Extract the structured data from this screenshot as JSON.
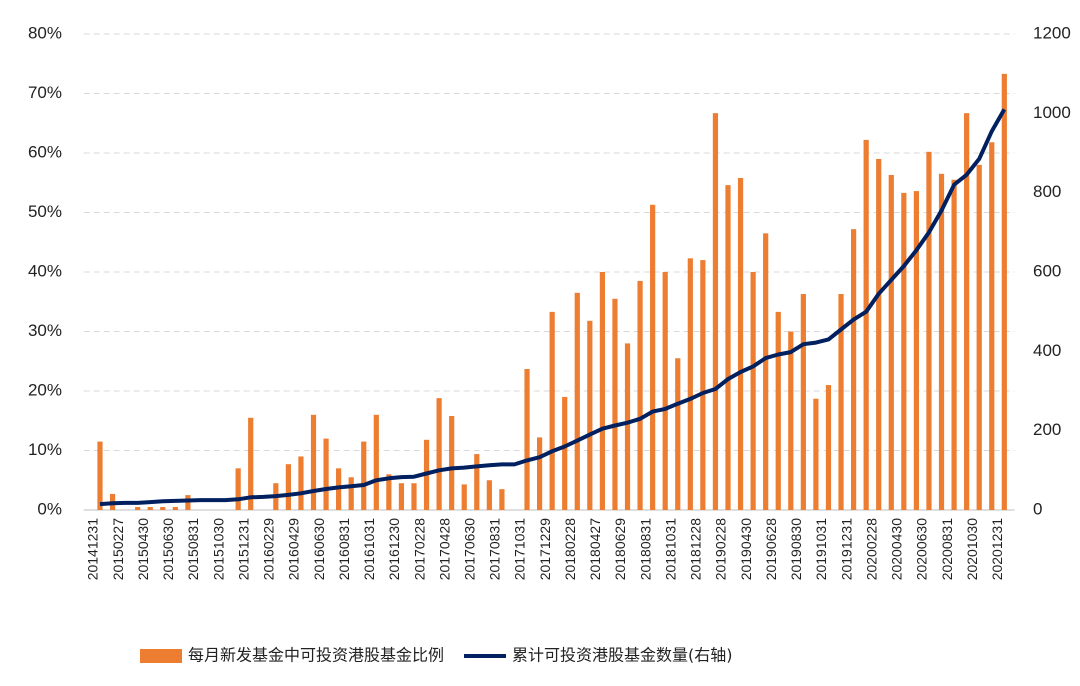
{
  "chart_data": {
    "type": "bar_line",
    "categories": [
      "20141231",
      null,
      "20150227",
      null,
      "20150430",
      null,
      "20150630",
      null,
      "20150831",
      null,
      "20151030",
      null,
      "20151231",
      null,
      "20160229",
      null,
      "20160429",
      null,
      "20160630",
      null,
      "20160831",
      null,
      "20161031",
      null,
      "20161230",
      null,
      "20170228",
      null,
      "20170428",
      null,
      "20170630",
      null,
      "20170831",
      null,
      "20171031",
      null,
      "20171229",
      null,
      "20180228",
      null,
      "20180427",
      null,
      "20180629",
      null,
      "20180831",
      null,
      "20181031",
      null,
      "20181228",
      null,
      "20190228",
      null,
      "20190430",
      null,
      "20190628",
      null,
      "20190830",
      null,
      "20191031",
      null,
      "20191231",
      null,
      "20200228",
      null,
      "20200430",
      null,
      "20200630",
      null,
      "20200831",
      null,
      "20201030",
      null,
      "20201231"
    ],
    "series": [
      {
        "name": "每月新发基金中可投资港股基金比例",
        "color": "#ed7d31",
        "kind": "bar",
        "values": [
          11.5,
          2.7,
          0,
          0.5,
          0.5,
          0.5,
          0.5,
          2.5,
          0,
          0,
          0,
          7,
          15.5,
          0,
          4.5,
          7.7,
          9,
          16,
          12,
          7,
          5.5,
          11.5,
          16,
          6,
          4.5,
          4.5,
          11.8,
          18.8,
          15.8,
          4.3,
          9.4,
          5,
          3.5,
          0,
          23.7,
          12.2,
          33.3,
          19,
          36.5,
          31.8,
          40,
          35.5,
          28,
          38.5,
          51.3,
          40,
          25.5,
          42.3,
          42,
          66.7,
          54.6,
          55.8,
          40,
          46.5,
          33.3,
          30,
          36.3,
          18.7,
          21,
          36.3,
          47.2,
          62.2,
          59,
          56.3,
          53.3,
          53.6,
          60.2,
          56.5,
          55.5,
          66.7,
          58,
          61.8,
          73.3
        ]
      },
      {
        "name": "累计可投资港股基金数量(右轴)",
        "color": "#002060",
        "kind": "line",
        "axis": "y2",
        "values": [
          15,
          17,
          18,
          18,
          20,
          22,
          23,
          24,
          25,
          25,
          25,
          27,
          32,
          33,
          35,
          38,
          42,
          48,
          53,
          57,
          60,
          63,
          75,
          80,
          83,
          84,
          92,
          100,
          105,
          107,
          110,
          113,
          115,
          115,
          125,
          133,
          148,
          160,
          175,
          190,
          205,
          213,
          220,
          230,
          248,
          255,
          268,
          280,
          295,
          305,
          330,
          348,
          362,
          383,
          392,
          398,
          418,
          422,
          430,
          455,
          480,
          500,
          545,
          580,
          615,
          655,
          700,
          755,
          820,
          845,
          885,
          955,
          1010
        ]
      }
    ],
    "ylim": [
      0,
      80
    ],
    "yticks": [
      {
        "value": 0,
        "label": "0%"
      },
      {
        "value": 10,
        "label": "10%"
      },
      {
        "value": 20,
        "label": "20%"
      },
      {
        "value": 30,
        "label": "30%"
      },
      {
        "value": 40,
        "label": "40%"
      },
      {
        "value": 50,
        "label": "50%"
      },
      {
        "value": 60,
        "label": "60%"
      },
      {
        "value": 70,
        "label": "70%"
      },
      {
        "value": 80,
        "label": "80%"
      }
    ],
    "y2lim": [
      0,
      1200
    ],
    "y2ticks": [
      0,
      200,
      400,
      600,
      800,
      1000,
      1200
    ],
    "grid": true,
    "legend": "bottom"
  }
}
